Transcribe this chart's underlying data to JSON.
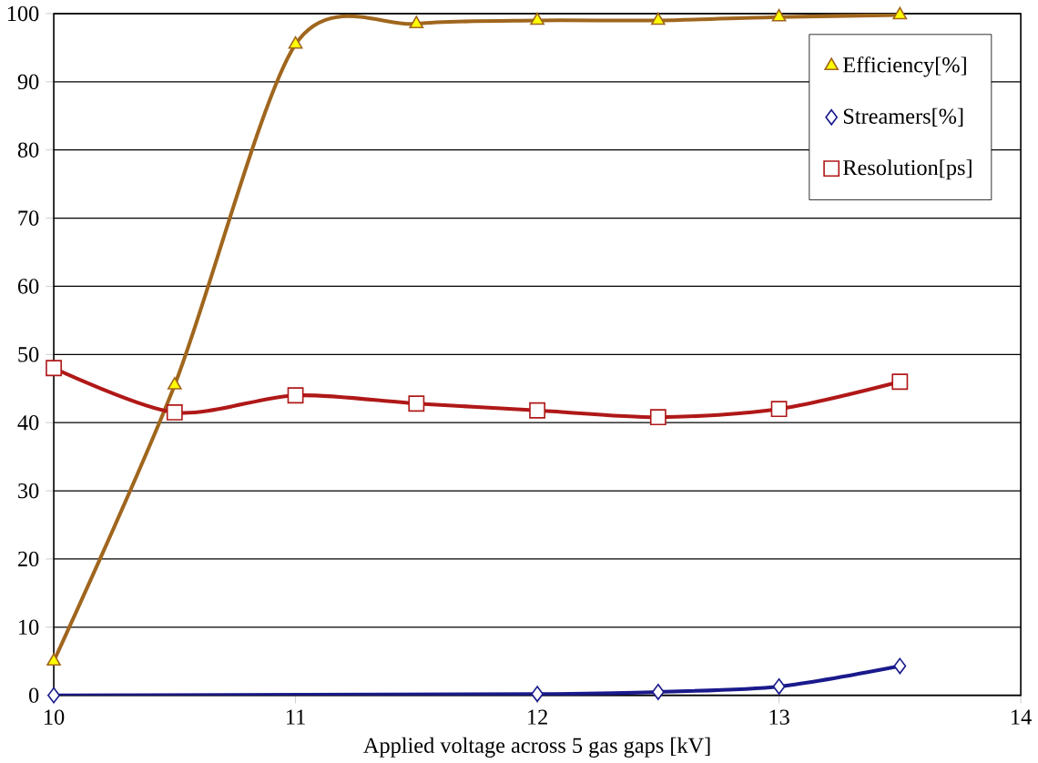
{
  "chart_data": {
    "type": "line",
    "xlabel": "Applied voltage across 5 gas gaps [kV]",
    "xlim": [
      10,
      14
    ],
    "xticks": [
      10,
      11,
      12,
      13,
      14
    ],
    "ylim": [
      0,
      100
    ],
    "yticks": [
      0,
      10,
      20,
      30,
      40,
      50,
      60,
      70,
      80,
      90,
      100
    ],
    "grid": "y",
    "legend": "top right",
    "line_style": "solid",
    "series": [
      {
        "name": "Efficiency[%]",
        "color": "#a0661e",
        "marker": "triangle",
        "x": [
          10,
          10.5,
          11,
          11.5,
          12,
          12.5,
          13,
          13.5
        ],
        "values": [
          5,
          45.5,
          95.5,
          98.5,
          99,
          99,
          99.5,
          99.8
        ],
        "colors": [
          "#ffff00",
          "#ffff00",
          "#ffff00",
          "#ffff00",
          "#ffff00",
          "#ffff00",
          "#ffff00",
          "#ffff00"
        ]
      },
      {
        "name": "Streamers[%]",
        "color": "#1a1a8c",
        "marker": "diamond",
        "x": [
          10,
          12,
          12.5,
          13,
          13.5
        ],
        "values": [
          0,
          0.2,
          0.5,
          1.3,
          4.3
        ],
        "colors": [
          "#ffffff",
          "#ffffff",
          "#ffffff",
          "#ffffff",
          "#ffffff"
        ]
      },
      {
        "name": "Resolution[ps]",
        "color": "#b01818",
        "marker": "square",
        "x": [
          10,
          10.5,
          11,
          11.5,
          12,
          12.5,
          13,
          13.5
        ],
        "values": [
          48,
          41.5,
          44,
          42.8,
          41.8,
          40.8,
          42,
          46
        ],
        "colors": [
          "#ffffff",
          "#ffffff",
          "#ffffff",
          "#ffffff",
          "#ffffff",
          "#ffffff",
          "#ffffff",
          "#ffffff"
        ]
      }
    ]
  }
}
